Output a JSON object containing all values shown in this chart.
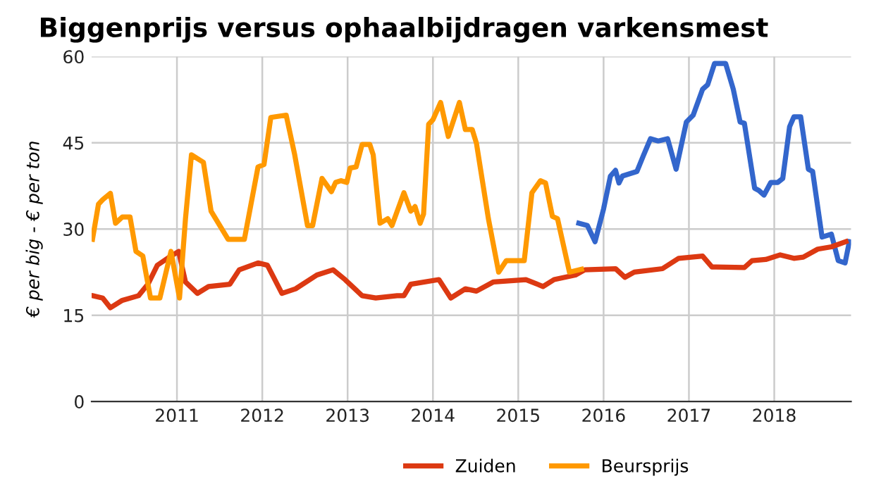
{
  "chart_data": {
    "type": "line",
    "title": "Biggenprijs versus ophaalbijdragen varkensmest",
    "ylabel": "€ per big - € per ton",
    "xlim": [
      2010,
      2018.9
    ],
    "xticks": [
      2011,
      2012,
      2013,
      2014,
      2015,
      2016,
      2017,
      2018
    ],
    "ylim": [
      0,
      60
    ],
    "yticks": [
      0,
      15,
      30,
      45,
      60
    ],
    "grid": true,
    "legend": "bottom",
    "marker": "none",
    "line_style": "solid",
    "series": [
      {
        "color": "#3366cc",
        "x": [
          2015.71,
          2015.81,
          2015.9,
          2016.0,
          2016.08,
          2016.14,
          2016.18,
          2016.22,
          2016.39,
          2016.47,
          2016.55,
          2016.64,
          2016.75,
          2016.85,
          2016.97,
          2017.05,
          2017.16,
          2017.22,
          2017.3,
          2017.43,
          2017.52,
          2017.6,
          2017.65,
          2017.77,
          2017.82,
          2017.88,
          2017.96,
          2018.04,
          2018.1,
          2018.18,
          2018.23,
          2018.31,
          2018.4,
          2018.45,
          2018.56,
          2018.67,
          2018.75,
          2018.83,
          2018.88
        ],
        "values": [
          31,
          30.6,
          27.8,
          33.5,
          39.2,
          40.2,
          38,
          39.2,
          40,
          42.9,
          45.7,
          45.3,
          45.7,
          40.4,
          48.6,
          49.8,
          54.3,
          55.1,
          58.8,
          58.8,
          54.3,
          48.6,
          48.4,
          37.1,
          36.7,
          35.9,
          38.1,
          38.1,
          38.8,
          47.8,
          49.5,
          49.5,
          40.4,
          40,
          28.6,
          29.1,
          24.5,
          24.1,
          27.8
        ]
      },
      {
        "name": "Zuiden",
        "color": "#dc3912",
        "x": [
          2010.01,
          2010.13,
          2010.22,
          2010.36,
          2010.55,
          2010.66,
          2010.77,
          2010.93,
          2011.02,
          2011.1,
          2011.24,
          2011.37,
          2011.62,
          2011.73,
          2011.95,
          2012.06,
          2012.23,
          2012.39,
          2012.64,
          2012.83,
          2012.97,
          2013.17,
          2013.33,
          2013.58,
          2013.66,
          2013.74,
          2014.07,
          2014.21,
          2014.38,
          2014.51,
          2014.71,
          2015.09,
          2015.29,
          2015.42,
          2015.67,
          2015.78,
          2016.14,
          2016.25,
          2016.36,
          2016.69,
          2016.88,
          2017.16,
          2017.27,
          2017.65,
          2017.74,
          2017.9,
          2018.07,
          2018.23,
          2018.34,
          2018.51,
          2018.67,
          2018.84
        ],
        "values": [
          18.4,
          18,
          16.3,
          17.6,
          18.4,
          20.4,
          23.7,
          25.3,
          26.1,
          20.8,
          18.8,
          20,
          20.4,
          22.9,
          24.1,
          23.7,
          18.8,
          19.6,
          22,
          22.9,
          21.2,
          18.4,
          18,
          18.4,
          18.4,
          20.4,
          21.2,
          18,
          19.6,
          19.2,
          20.8,
          21.2,
          20,
          21.2,
          22,
          22.9,
          23.1,
          21.6,
          22.5,
          23.1,
          24.9,
          25.3,
          23.4,
          23.3,
          24.5,
          24.7,
          25.5,
          24.9,
          25.1,
          26.5,
          26.9,
          27.8
        ]
      },
      {
        "name": "Beursprijs",
        "color": "#ff9900",
        "x": [
          2010.01,
          2010.08,
          2010.13,
          2010.22,
          2010.28,
          2010.36,
          2010.45,
          2010.52,
          2010.6,
          2010.69,
          2010.8,
          2010.93,
          2011.03,
          2011.1,
          2011.17,
          2011.31,
          2011.4,
          2011.6,
          2011.79,
          2011.95,
          2012.02,
          2012.1,
          2012.28,
          2012.38,
          2012.53,
          2012.59,
          2012.7,
          2012.81,
          2012.86,
          2012.92,
          2012.99,
          2013.03,
          2013.1,
          2013.17,
          2013.26,
          2013.3,
          2013.38,
          2013.47,
          2013.52,
          2013.66,
          2013.74,
          2013.79,
          2013.85,
          2013.89,
          2013.95,
          2014.0,
          2014.09,
          2014.18,
          2014.31,
          2014.38,
          2014.46,
          2014.51,
          2014.65,
          2014.77,
          2014.86,
          2015.07,
          2015.16,
          2015.26,
          2015.32,
          2015.4,
          2015.46,
          2015.6,
          2015.74
        ],
        "values": [
          28.2,
          34.3,
          35.1,
          36.2,
          31,
          32.1,
          32.1,
          26.1,
          25.3,
          18,
          18,
          26.1,
          18,
          31.8,
          42.9,
          41.6,
          33.1,
          28.2,
          28.2,
          40.8,
          41.2,
          49.4,
          49.8,
          42.9,
          30.6,
          30.6,
          38.8,
          36.5,
          38.1,
          38.4,
          38.1,
          40.6,
          40.8,
          44.7,
          44.7,
          42.9,
          31,
          31.8,
          30.6,
          36.3,
          33.1,
          33.9,
          31,
          32.6,
          48.2,
          49,
          52,
          46.1,
          52,
          47.3,
          47.3,
          44.9,
          31.8,
          22.5,
          24.5,
          24.5,
          36.3,
          38.4,
          38,
          32.2,
          31.8,
          22.5,
          23
        ]
      }
    ]
  }
}
